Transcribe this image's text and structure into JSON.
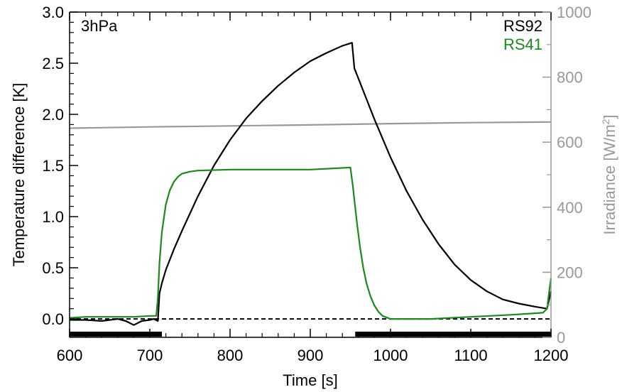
{
  "chart_data": {
    "type": "line",
    "annotation": "3hPa",
    "xlabel": "Time [s]",
    "ylabel": "Temperature difference [K]",
    "y2label_pre": "Irradiance [W/m",
    "y2label_sup": "2",
    "y2label_post": "]",
    "xlim": [
      600,
      1200
    ],
    "ylim": [
      -0.18,
      3.0
    ],
    "y2lim": [
      0,
      1000
    ],
    "x_ticks": [
      600,
      700,
      800,
      900,
      1000,
      1100,
      1200
    ],
    "y_ticks": [
      "0.0",
      "0.5",
      "1.0",
      "1.5",
      "2.0",
      "2.5",
      "3.0"
    ],
    "y2_ticks": [
      0,
      200,
      400,
      600,
      800,
      1000
    ],
    "legend_position": "top-right",
    "colors": {
      "axis": "#000000",
      "rs92": "#000000",
      "rs41": "#1a8a1a",
      "irradiance": "#999999"
    },
    "series": [
      {
        "name": "RS92",
        "axis": "left",
        "x": [
          600,
          620,
          640,
          660,
          670,
          680,
          690,
          700,
          705,
          710,
          712,
          715,
          720,
          730,
          740,
          760,
          780,
          800,
          820,
          840,
          860,
          880,
          900,
          920,
          940,
          952,
          955,
          960,
          970,
          980,
          1000,
          1020,
          1040,
          1060,
          1080,
          1100,
          1120,
          1140,
          1160,
          1180,
          1195,
          1198,
          1200
        ],
        "y": [
          -0.01,
          -0.01,
          -0.02,
          0.0,
          -0.02,
          -0.06,
          -0.02,
          -0.01,
          0.0,
          -0.02,
          0.25,
          0.35,
          0.48,
          0.68,
          0.86,
          1.2,
          1.5,
          1.75,
          1.96,
          2.13,
          2.28,
          2.41,
          2.52,
          2.6,
          2.67,
          2.7,
          2.45,
          2.35,
          2.15,
          1.95,
          1.58,
          1.25,
          0.97,
          0.73,
          0.53,
          0.38,
          0.27,
          0.19,
          0.15,
          0.12,
          0.1,
          0.2,
          0.27
        ]
      },
      {
        "name": "RS41",
        "axis": "left",
        "x": [
          600,
          620,
          640,
          660,
          680,
          700,
          708,
          710,
          712,
          715,
          720,
          725,
          730,
          735,
          740,
          750,
          760,
          800,
          850,
          900,
          950,
          953,
          958,
          962,
          966,
          970,
          975,
          980,
          985,
          990,
          1000,
          1020,
          1050,
          1100,
          1150,
          1190,
          1195,
          1198,
          1200
        ],
        "y": [
          0.01,
          0.02,
          0.02,
          0.02,
          0.02,
          0.03,
          0.03,
          0.2,
          0.55,
          0.85,
          1.12,
          1.26,
          1.34,
          1.39,
          1.42,
          1.44,
          1.45,
          1.46,
          1.46,
          1.46,
          1.48,
          1.3,
          0.95,
          0.7,
          0.5,
          0.35,
          0.22,
          0.13,
          0.07,
          0.03,
          0.0,
          0.0,
          0.0,
          0.02,
          0.04,
          0.06,
          0.1,
          0.28,
          0.4
        ]
      },
      {
        "name": "Irradiance",
        "axis": "right",
        "x": [
          600,
          700,
          800,
          900,
          1000,
          1100,
          1200
        ],
        "y": [
          643,
          647,
          650,
          653,
          657,
          660,
          662
        ]
      }
    ],
    "exposure_bar": {
      "segments": [
        [
          600,
          715
        ],
        [
          956,
          1200
        ]
      ]
    }
  }
}
